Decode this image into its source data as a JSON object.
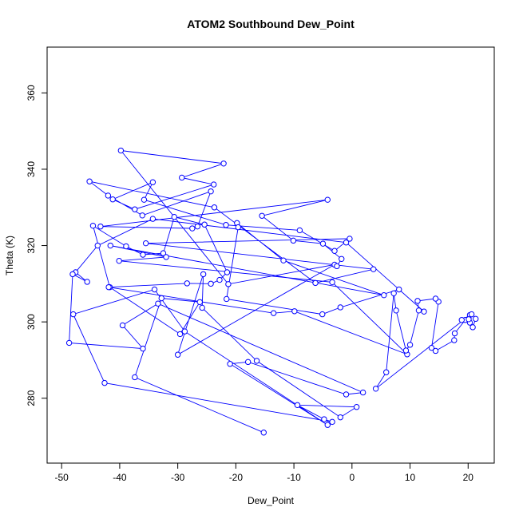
{
  "chart_data": {
    "type": "scatter",
    "title": "ATOM2 Southbound Dew_Point",
    "xlabel": "Dew_Point",
    "ylabel": "Theta (K)",
    "xlim": [
      -52.5,
      24.5
    ],
    "ylim": [
      263,
      372
    ],
    "xticks": [
      -50,
      -40,
      -30,
      -20,
      -10,
      0,
      10,
      20
    ],
    "yticks": [
      280,
      300,
      320,
      340,
      360
    ],
    "x_tick_labels": [
      "-50",
      "-40",
      "-30",
      "-20",
      "-10",
      "0",
      "10",
      "20"
    ],
    "y_tick_labels": [
      "280",
      "300",
      "320",
      "340",
      "360"
    ],
    "line_color": "#0000ff",
    "marker": "open-circle",
    "connected": true,
    "series": [
      {
        "points": [
          [
            -15.2,
            271.0
          ],
          [
            -37.4,
            285.5
          ],
          [
            -32.8,
            306.2
          ],
          [
            -26.2,
            305.2
          ],
          [
            -29.6,
            296.8
          ],
          [
            -41.7,
            309.1
          ],
          [
            -44.6,
            325.2
          ],
          [
            -38.9,
            319.8
          ],
          [
            -36.0,
            317.6
          ],
          [
            -32.5,
            318.0
          ],
          [
            -30.6,
            327.5
          ],
          [
            -25.4,
            325.5
          ],
          [
            -21.5,
            313.0
          ],
          [
            -22.8,
            311.0
          ],
          [
            -24.3,
            310.0
          ],
          [
            -28.4,
            310.1
          ],
          [
            -41.9,
            309.1
          ],
          [
            -13.5,
            302.3
          ],
          [
            -9.9,
            302.8
          ],
          [
            9.5,
            291.5
          ],
          [
            -3.4,
            310.4
          ],
          [
            -40.1,
            316.0
          ],
          [
            -32.0,
            317.0
          ],
          [
            -41.6,
            320.0
          ],
          [
            5.5,
            307.0
          ],
          [
            -11.8,
            316.1
          ],
          [
            -19.8,
            325.9
          ],
          [
            -19.6,
            324.8
          ],
          [
            -21.6,
            306.0
          ],
          [
            -5.1,
            302.0
          ],
          [
            -2.0,
            303.8
          ],
          [
            8.1,
            308.5
          ],
          [
            12.4,
            302.7
          ],
          [
            -1.0,
            320.8
          ],
          [
            -34.3,
            327.0
          ],
          [
            -43.8,
            320.0
          ],
          [
            -47.6,
            313.0
          ],
          [
            -45.6,
            310.5
          ],
          [
            -48.1,
            312.5
          ],
          [
            -48.7,
            294.5
          ],
          [
            -36.0,
            293.0
          ],
          [
            -39.5,
            299.1
          ],
          [
            -33.4,
            304.8
          ],
          [
            1.9,
            281.5
          ],
          [
            -1.0,
            281.0
          ],
          [
            -17.9,
            289.5
          ],
          [
            -21.0,
            289.0
          ],
          [
            -4.2,
            273.0
          ],
          [
            -28.8,
            297.5
          ],
          [
            -34.0,
            308.5
          ],
          [
            -48.0,
            302.0
          ],
          [
            -42.6,
            284.0
          ],
          [
            -3.4,
            273.8
          ],
          [
            -4.8,
            274.5
          ],
          [
            -9.4,
            278.2
          ],
          [
            0.8,
            277.7
          ],
          [
            -2.0,
            275.0
          ],
          [
            -16.4,
            289.8
          ],
          [
            -25.8,
            303.7
          ],
          [
            -25.6,
            312.5
          ],
          [
            -30.0,
            291.4
          ],
          [
            -3.0,
            315.0
          ],
          [
            -21.3,
            309.9
          ],
          [
            -39.8,
            344.9
          ],
          [
            -22.1,
            341.5
          ],
          [
            -29.3,
            337.8
          ],
          [
            -23.8,
            336.0
          ],
          [
            -37.4,
            329.5
          ],
          [
            -41.2,
            332.1
          ],
          [
            -34.3,
            336.6
          ],
          [
            -35.8,
            332.0
          ],
          [
            -21.7,
            325.4
          ],
          [
            -9.0,
            324.0
          ],
          [
            -3.0,
            318.6
          ],
          [
            -0.4,
            321.8
          ],
          [
            -35.5,
            320.6
          ],
          [
            3.7,
            313.8
          ],
          [
            -6.3,
            310.2
          ],
          [
            -23.7,
            330.0
          ],
          [
            -45.2,
            336.8
          ],
          [
            -42.0,
            333.1
          ],
          [
            -36.1,
            327.9
          ],
          [
            -24.3,
            334.2
          ],
          [
            -26.6,
            325.0
          ],
          [
            -27.5,
            324.5
          ],
          [
            -43.3,
            325.0
          ],
          [
            -4.2,
            332.0
          ],
          [
            -15.5,
            327.8
          ],
          [
            -10.1,
            321.3
          ],
          [
            -5.0,
            320.5
          ],
          [
            -1.8,
            316.5
          ],
          [
            -2.6,
            314.6
          ]
        ]
      },
      {
        "points": [
          [
            21.3,
            300.8
          ],
          [
            20.8,
            298.6
          ],
          [
            20.3,
            299.8
          ],
          [
            19.5,
            300.5
          ],
          [
            17.7,
            297.0
          ],
          [
            17.6,
            295.2
          ],
          [
            14.4,
            292.4
          ],
          [
            13.7,
            293.2
          ],
          [
            14.9,
            305.3
          ],
          [
            14.4,
            306.1
          ],
          [
            11.3,
            305.5
          ],
          [
            11.5,
            303.0
          ],
          [
            10.0,
            294.0
          ],
          [
            9.3,
            292.5
          ],
          [
            7.6,
            303.0
          ],
          [
            7.2,
            307.5
          ],
          [
            5.9,
            286.8
          ],
          [
            4.1,
            282.5
          ],
          [
            20.3,
            301.8
          ],
          [
            20.6,
            302.0
          ],
          [
            18.9,
            300.5
          ],
          [
            20.1,
            300.7
          ]
        ]
      }
    ]
  }
}
